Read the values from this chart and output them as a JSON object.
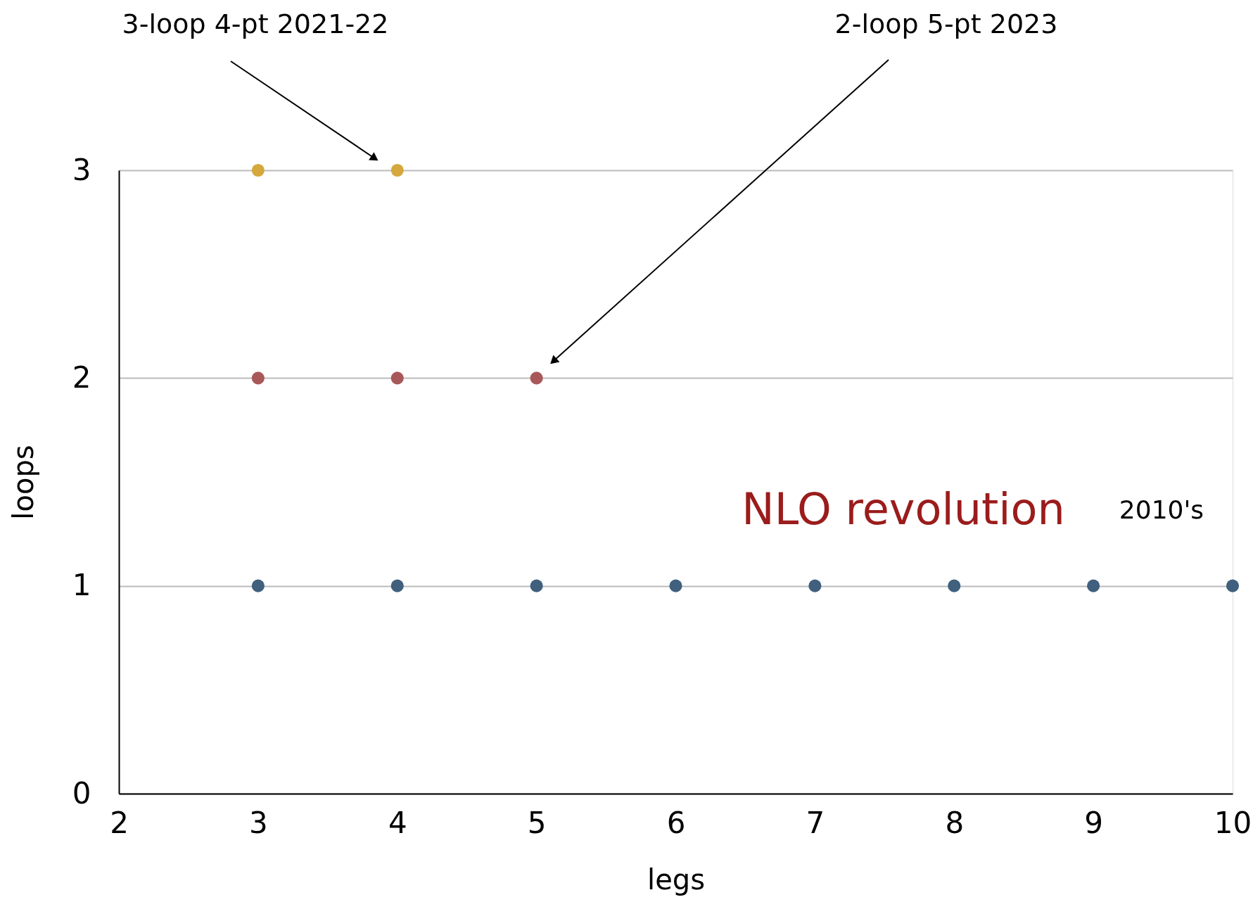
{
  "chart_data": {
    "type": "scatter",
    "xlabel": "legs",
    "ylabel": "loops",
    "xlim": [
      2,
      10
    ],
    "ylim": [
      0,
      3
    ],
    "xticks": [
      2,
      3,
      4,
      5,
      6,
      7,
      8,
      9,
      10
    ],
    "yticks": [
      0,
      1,
      2,
      3
    ],
    "grid": "y",
    "marker": "circle",
    "series": [
      {
        "color": "#40607e",
        "x": [
          3,
          4,
          5,
          6,
          7,
          8,
          9,
          10
        ],
        "values": [
          1,
          1,
          1,
          1,
          1,
          1,
          1,
          1
        ]
      },
      {
        "color": "#a85858",
        "x": [
          3,
          4,
          5
        ],
        "values": [
          2,
          2,
          2
        ]
      },
      {
        "color": "#d4a83c",
        "x": [
          3,
          4
        ],
        "values": [
          3,
          3
        ]
      }
    ],
    "annotations": [
      "3-loop 4-pt  2021-22",
      "2-loop 5-pt  2023",
      "NLO revolution",
      "2010's"
    ]
  }
}
